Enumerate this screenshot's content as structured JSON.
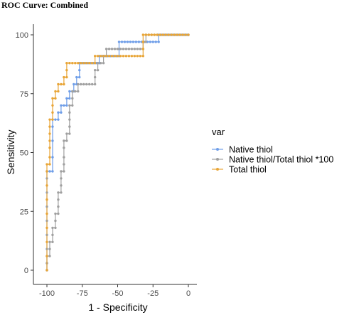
{
  "page": {
    "title": "ROC Curve: Combined"
  },
  "chart_data": {
    "type": "line",
    "title": "",
    "xlabel": "1 - Specificity",
    "ylabel": "Sensitivity",
    "xlim": [
      -100,
      0
    ],
    "ylim": [
      0,
      100
    ],
    "x_ticks": [
      -100,
      -75,
      -50,
      -25,
      0
    ],
    "y_ticks": [
      0,
      25,
      50,
      75,
      100
    ],
    "grid": false,
    "legend": {
      "title": "var",
      "position": "right"
    },
    "series": [
      {
        "name": "Native thiol",
        "color": "#6f9ee8",
        "points": [
          [
            -100,
            0
          ],
          [
            -100,
            3
          ],
          [
            -100,
            9
          ],
          [
            -100,
            15
          ],
          [
            -100,
            21
          ],
          [
            -100,
            27
          ],
          [
            -100,
            33
          ],
          [
            -100,
            39
          ],
          [
            -100,
            42
          ],
          [
            -98,
            42
          ],
          [
            -96,
            42
          ],
          [
            -96,
            48
          ],
          [
            -96,
            55
          ],
          [
            -96,
            61
          ],
          [
            -96,
            64
          ],
          [
            -94,
            64
          ],
          [
            -92,
            64
          ],
          [
            -92,
            67
          ],
          [
            -90,
            67
          ],
          [
            -90,
            70
          ],
          [
            -88,
            70
          ],
          [
            -86,
            70
          ],
          [
            -86,
            73
          ],
          [
            -84,
            73
          ],
          [
            -84,
            76
          ],
          [
            -82,
            76
          ],
          [
            -81,
            76
          ],
          [
            -81,
            79
          ],
          [
            -79,
            79
          ],
          [
            -79,
            82
          ],
          [
            -77,
            82
          ],
          [
            -77,
            85
          ],
          [
            -77,
            88
          ],
          [
            -75,
            88
          ],
          [
            -73,
            88
          ],
          [
            -71,
            88
          ],
          [
            -69,
            88
          ],
          [
            -67,
            88
          ],
          [
            -65,
            88
          ],
          [
            -63,
            88
          ],
          [
            -63,
            91
          ],
          [
            -61,
            91
          ],
          [
            -59,
            91
          ],
          [
            -57,
            91
          ],
          [
            -55,
            91
          ],
          [
            -53,
            91
          ],
          [
            -51,
            91
          ],
          [
            -49,
            91
          ],
          [
            -49,
            94
          ],
          [
            -49,
            97
          ],
          [
            -47,
            97
          ],
          [
            -45,
            97
          ],
          [
            -43,
            97
          ],
          [
            -41,
            97
          ],
          [
            -39,
            97
          ],
          [
            -37,
            97
          ],
          [
            -35,
            97
          ],
          [
            -33,
            97
          ],
          [
            -31,
            97
          ],
          [
            -29,
            97
          ],
          [
            -27,
            97
          ],
          [
            -25,
            97
          ],
          [
            -23,
            97
          ],
          [
            -21,
            97
          ],
          [
            -21,
            100
          ],
          [
            -19,
            100
          ],
          [
            -17,
            100
          ],
          [
            -15,
            100
          ],
          [
            -13,
            100
          ],
          [
            -11,
            100
          ],
          [
            -9,
            100
          ],
          [
            -7,
            100
          ],
          [
            -5,
            100
          ],
          [
            -3,
            100
          ],
          [
            -1,
            100
          ],
          [
            0,
            100
          ]
        ]
      },
      {
        "name": "Native thiol/Total thiol *100",
        "color": "#a0a0a0",
        "points": [
          [
            -100,
            0
          ],
          [
            -100,
            3
          ],
          [
            -100,
            6
          ],
          [
            -98,
            6
          ],
          [
            -98,
            9
          ],
          [
            -98,
            12
          ],
          [
            -96,
            12
          ],
          [
            -96,
            15
          ],
          [
            -96,
            18
          ],
          [
            -94,
            18
          ],
          [
            -94,
            21
          ],
          [
            -94,
            24
          ],
          [
            -92,
            24
          ],
          [
            -92,
            27
          ],
          [
            -92,
            30
          ],
          [
            -92,
            33
          ],
          [
            -90,
            33
          ],
          [
            -90,
            36
          ],
          [
            -90,
            39
          ],
          [
            -90,
            42
          ],
          [
            -88,
            42
          ],
          [
            -88,
            45
          ],
          [
            -88,
            48
          ],
          [
            -88,
            52
          ],
          [
            -88,
            55
          ],
          [
            -86,
            55
          ],
          [
            -86,
            58
          ],
          [
            -84,
            58
          ],
          [
            -84,
            61
          ],
          [
            -84,
            64
          ],
          [
            -84,
            67
          ],
          [
            -84,
            70
          ],
          [
            -82,
            70
          ],
          [
            -82,
            73
          ],
          [
            -82,
            76
          ],
          [
            -80,
            76
          ],
          [
            -78,
            76
          ],
          [
            -78,
            79
          ],
          [
            -76,
            79
          ],
          [
            -74,
            79
          ],
          [
            -72,
            79
          ],
          [
            -70,
            79
          ],
          [
            -68,
            79
          ],
          [
            -66,
            79
          ],
          [
            -66,
            82
          ],
          [
            -66,
            85
          ],
          [
            -64,
            85
          ],
          [
            -64,
            88
          ],
          [
            -62,
            88
          ],
          [
            -60,
            88
          ],
          [
            -60,
            91
          ],
          [
            -58,
            91
          ],
          [
            -58,
            94
          ],
          [
            -56,
            94
          ],
          [
            -54,
            94
          ],
          [
            -52,
            94
          ],
          [
            -50,
            94
          ],
          [
            -48,
            94
          ],
          [
            -46,
            94
          ],
          [
            -44,
            94
          ],
          [
            -42,
            94
          ],
          [
            -40,
            94
          ],
          [
            -38,
            94
          ],
          [
            -36,
            94
          ],
          [
            -34,
            94
          ],
          [
            -32,
            94
          ],
          [
            -32,
            97
          ],
          [
            -30,
            97
          ],
          [
            -30,
            100
          ],
          [
            -28,
            100
          ],
          [
            -26,
            100
          ],
          [
            -24,
            100
          ],
          [
            -22,
            100
          ],
          [
            -20,
            100
          ],
          [
            -18,
            100
          ],
          [
            -16,
            100
          ],
          [
            -14,
            100
          ],
          [
            -12,
            100
          ],
          [
            -10,
            100
          ],
          [
            -8,
            100
          ],
          [
            -6,
            100
          ],
          [
            -4,
            100
          ],
          [
            -2,
            100
          ],
          [
            0,
            100
          ]
        ]
      },
      {
        "name": "Total thiol",
        "color": "#e8a537",
        "points": [
          [
            -100,
            0
          ],
          [
            -100,
            6
          ],
          [
            -100,
            12
          ],
          [
            -100,
            18
          ],
          [
            -100,
            24
          ],
          [
            -100,
            30
          ],
          [
            -100,
            36
          ],
          [
            -100,
            42
          ],
          [
            -100,
            45
          ],
          [
            -98,
            45
          ],
          [
            -98,
            48
          ],
          [
            -98,
            52
          ],
          [
            -98,
            55
          ],
          [
            -98,
            58
          ],
          [
            -98,
            61
          ],
          [
            -98,
            64
          ],
          [
            -96,
            64
          ],
          [
            -96,
            67
          ],
          [
            -96,
            70
          ],
          [
            -96,
            73
          ],
          [
            -94,
            73
          ],
          [
            -94,
            76
          ],
          [
            -92,
            76
          ],
          [
            -92,
            79
          ],
          [
            -90,
            79
          ],
          [
            -88,
            79
          ],
          [
            -88,
            82
          ],
          [
            -86,
            82
          ],
          [
            -86,
            85
          ],
          [
            -86,
            88
          ],
          [
            -84,
            88
          ],
          [
            -82,
            88
          ],
          [
            -80,
            88
          ],
          [
            -78,
            88
          ],
          [
            -76,
            88
          ],
          [
            -74,
            88
          ],
          [
            -72,
            88
          ],
          [
            -70,
            88
          ],
          [
            -68,
            88
          ],
          [
            -66,
            88
          ],
          [
            -66,
            91
          ],
          [
            -64,
            91
          ],
          [
            -62,
            91
          ],
          [
            -60,
            91
          ],
          [
            -58,
            91
          ],
          [
            -56,
            91
          ],
          [
            -54,
            91
          ],
          [
            -52,
            91
          ],
          [
            -50,
            91
          ],
          [
            -48,
            91
          ],
          [
            -46,
            91
          ],
          [
            -44,
            91
          ],
          [
            -42,
            91
          ],
          [
            -40,
            91
          ],
          [
            -38,
            91
          ],
          [
            -36,
            91
          ],
          [
            -34,
            91
          ],
          [
            -32,
            91
          ],
          [
            -32,
            94
          ],
          [
            -32,
            97
          ],
          [
            -32,
            100
          ],
          [
            -30,
            100
          ],
          [
            -28,
            100
          ],
          [
            -26,
            100
          ],
          [
            -24,
            100
          ],
          [
            -22,
            100
          ],
          [
            -20,
            100
          ],
          [
            -18,
            100
          ],
          [
            -16,
            100
          ],
          [
            -14,
            100
          ],
          [
            -12,
            100
          ],
          [
            -10,
            100
          ],
          [
            -8,
            100
          ],
          [
            -6,
            100
          ],
          [
            -4,
            100
          ],
          [
            -2,
            100
          ],
          [
            0,
            100
          ]
        ]
      }
    ]
  }
}
